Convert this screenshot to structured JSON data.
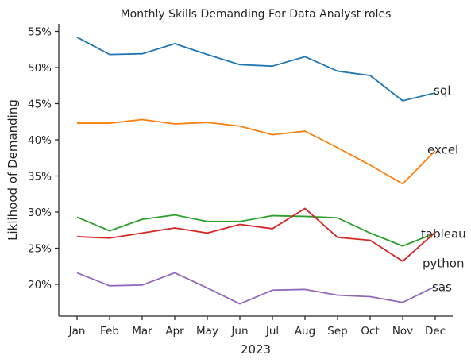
{
  "chart_data": {
    "type": "line",
    "title": "Monthly Skills Demanding For Data Analyst roles",
    "xlabel": "2023",
    "ylabel": "Liklihood of Demanding",
    "categories": [
      "Jan",
      "Feb",
      "Mar",
      "Apr",
      "May",
      "Jun",
      "Jul",
      "Aug",
      "Sep",
      "Oct",
      "Nov",
      "Dec"
    ],
    "ylim": [
      15.5,
      56.2
    ],
    "yticks": [
      20,
      25,
      30,
      35,
      40,
      45,
      50,
      55
    ],
    "ytick_labels": [
      "20%",
      "25%",
      "30%",
      "35%",
      "40%",
      "45%",
      "50%",
      "55%"
    ],
    "grid": false,
    "legend": "none",
    "series": [
      {
        "name": "sql",
        "color": "#1f77b4",
        "values": [
          54.2,
          51.8,
          51.9,
          53.3,
          51.8,
          50.4,
          50.2,
          51.5,
          49.5,
          48.9,
          45.4,
          46.5
        ]
      },
      {
        "name": "excel",
        "color": "#ff7f0e",
        "values": [
          42.3,
          42.3,
          42.8,
          42.2,
          42.4,
          41.9,
          40.7,
          41.2,
          38.9,
          36.5,
          33.9,
          38.5
        ]
      },
      {
        "name": "tableau",
        "color": "#2ca02c",
        "values": [
          29.3,
          27.4,
          29.0,
          29.6,
          28.7,
          28.7,
          29.5,
          29.4,
          29.2,
          27.1,
          25.3,
          27.1
        ]
      },
      {
        "name": "python",
        "color": "#d62728",
        "values": [
          26.6,
          26.4,
          27.1,
          27.8,
          27.1,
          28.3,
          27.7,
          30.5,
          26.5,
          26.1,
          23.2,
          27.2
        ]
      },
      {
        "name": "sas",
        "color": "#9467bd",
        "values": [
          21.6,
          19.8,
          19.9,
          21.6,
          19.5,
          17.3,
          19.2,
          19.3,
          18.5,
          18.3,
          17.5,
          19.7
        ]
      }
    ]
  }
}
